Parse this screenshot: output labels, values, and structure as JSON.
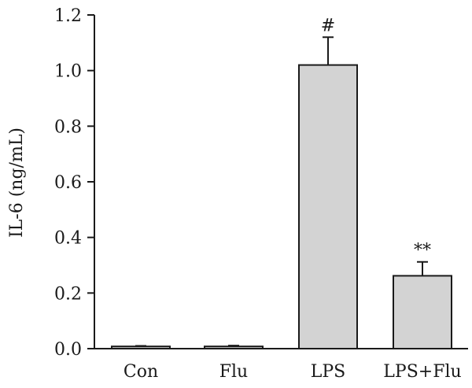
{
  "chart_data": {
    "type": "bar",
    "title": "",
    "xlabel": "",
    "ylabel": "IL-6 (ng/mL)",
    "ylim": [
      0,
      1.2
    ],
    "yticks": [
      "0.0",
      "0.2",
      "0.4",
      "0.6",
      "0.8",
      "1.0",
      "1.2"
    ],
    "categories": [
      "Con",
      "Flu",
      "LPS",
      "LPS+Flu"
    ],
    "values": [
      0.008,
      0.008,
      1.02,
      0.262
    ],
    "errors": [
      0.002,
      0.003,
      0.1,
      0.05
    ],
    "annotations": [
      "",
      "",
      "#",
      "**"
    ],
    "bar_color": "#d3d3d3",
    "edge_color": "#1a1a1a",
    "grid": false,
    "legend": "none"
  }
}
